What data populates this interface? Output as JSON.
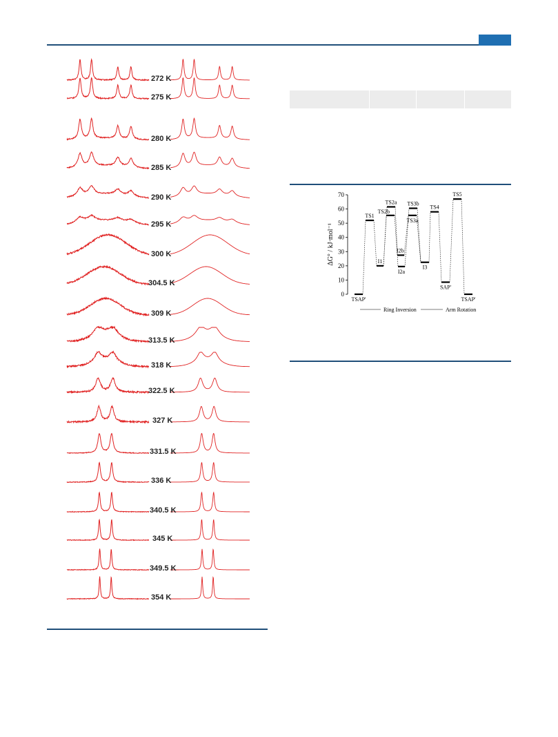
{
  "spectra": {
    "temperatures": [
      "272 K",
      "275 K",
      "280 K",
      "285 K",
      "290 K",
      "295 K",
      "300 K",
      "304.5 K",
      "309 K",
      "313.5 K",
      "318 K",
      "322.5 K",
      "327 K",
      "331.5 K",
      "336 K",
      "340.5 K",
      "345 K",
      "349.5 K",
      "354 K"
    ],
    "line_color": "#e02020"
  },
  "chart_data": {
    "type": "energy-level-diagram",
    "ylabel": "ΔG° / kJ·mol⁻¹",
    "ylim": [
      0,
      70
    ],
    "yticks": [
      0,
      10,
      20,
      30,
      40,
      50,
      60,
      70
    ],
    "levels": [
      {
        "label": "TSAP'",
        "value": 0
      },
      {
        "label": "TS1",
        "value": 52
      },
      {
        "label": "I1",
        "value": 20
      },
      {
        "label": "TS2b",
        "value": 55.5
      },
      {
        "label": "TS2a",
        "value": 61.5
      },
      {
        "label": "I2b",
        "value": 27.5
      },
      {
        "label": "I2a",
        "value": 19.5
      },
      {
        "label": "TS3a",
        "value": 55.5
      },
      {
        "label": "TS3b",
        "value": 60.5
      },
      {
        "label": "I3",
        "value": 22.5
      },
      {
        "label": "TS4",
        "value": 58
      },
      {
        "label": "SAP'",
        "value": 8.5
      },
      {
        "label": "TS5",
        "value": 67
      },
      {
        "label": "TSAP'",
        "value": 0
      }
    ],
    "legend": [
      "Ring Inversion",
      "Arm Rotation"
    ]
  }
}
